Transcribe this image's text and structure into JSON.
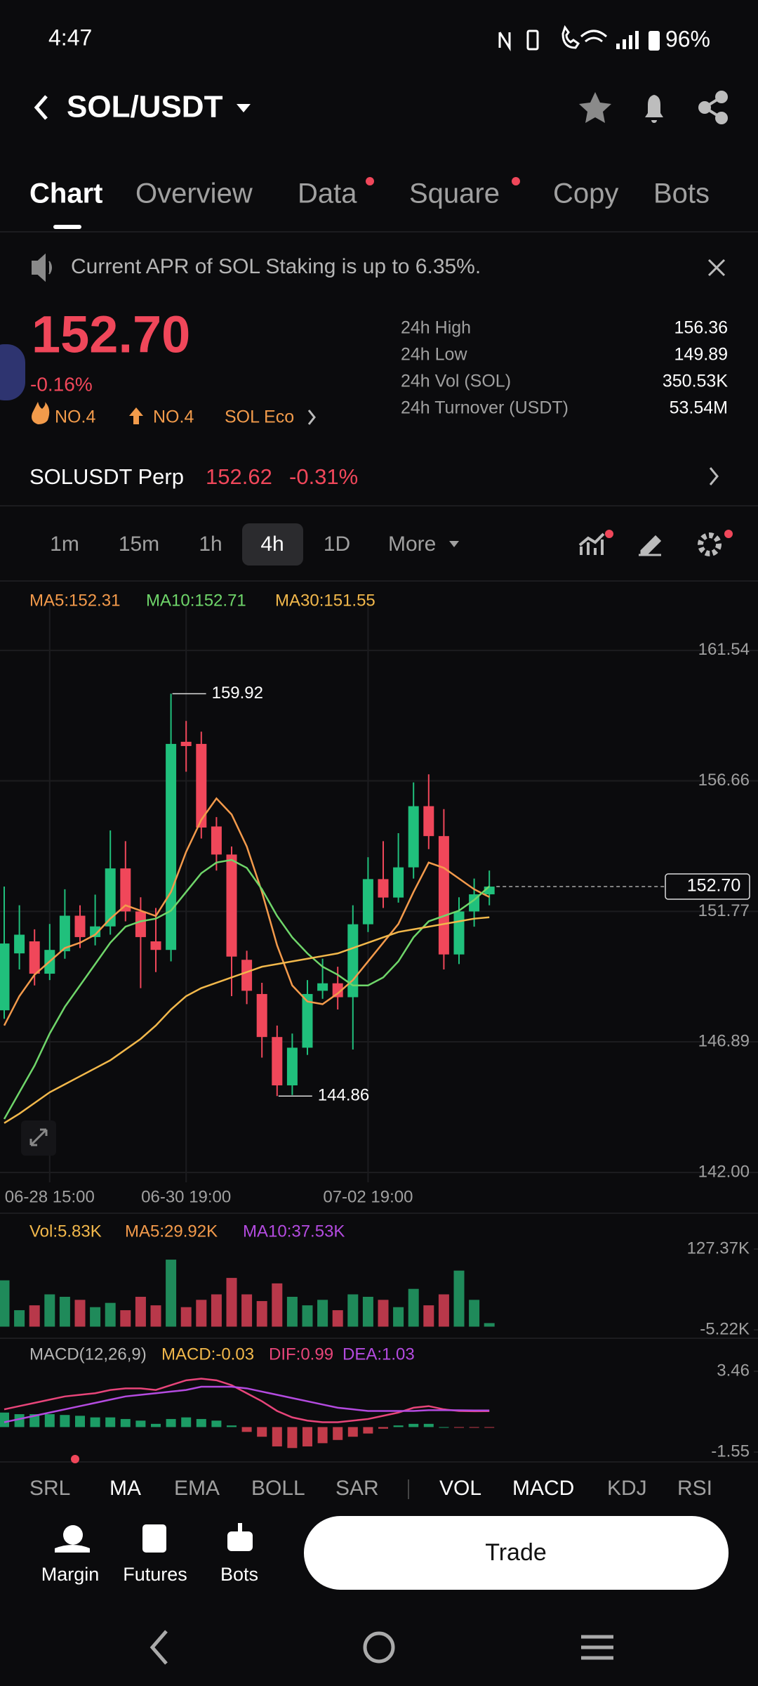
{
  "status_bar": {
    "time": "4:47",
    "battery": "96%"
  },
  "header": {
    "pair": "SOL/USDT"
  },
  "tabs": [
    "Chart",
    "Overview",
    "Data",
    "Square",
    "Copy",
    "Bots"
  ],
  "banner": {
    "text": "Current APR of SOL Staking is up to 6.35%."
  },
  "ticker": {
    "price": "152.70",
    "change": "-0.16%",
    "tags": [
      "NO.4",
      "NO.4",
      "SOL Eco"
    ],
    "stats": [
      {
        "label": "24h High",
        "value": "156.36"
      },
      {
        "label": "24h Low",
        "value": "149.89"
      },
      {
        "label": "24h Vol (SOL)",
        "value": "350.53K"
      },
      {
        "label": "24h Turnover (USDT)",
        "value": "53.54M"
      }
    ]
  },
  "perp": {
    "name": "SOLUSDT Perp",
    "price": "152.62",
    "change": "-0.31%"
  },
  "timeframes": [
    "1m",
    "15m",
    "1h",
    "4h",
    "1D",
    "More"
  ],
  "chart_data": [
    {
      "type": "candlestick",
      "up_color": "#20c07c",
      "down_color": "#f0475a",
      "categories": [
        null,
        null,
        null,
        "06-28 15:00",
        null,
        null,
        null,
        null,
        null,
        null,
        null,
        null,
        "06-30 19:00",
        null,
        null,
        null,
        null,
        null,
        null,
        null,
        null,
        null,
        null,
        null,
        "07-02 19:00",
        null,
        null,
        null,
        null,
        null,
        null,
        null,
        null
      ],
      "open": [
        148.07,
        150.2,
        150.65,
        149.44,
        150.28,
        151.61,
        150.81,
        151.21,
        153.38,
        151.77,
        150.65,
        150.33,
        158.12,
        158.04,
        154.95,
        153.9,
        149.96,
        148.68,
        147.07,
        145.26,
        146.67,
        148.8,
        149.08,
        148.56,
        151.29,
        152.98,
        152.29,
        153.42,
        155.71,
        154.59,
        150.16,
        151.77,
        152.41
      ],
      "high": [
        152.7,
        152.0,
        151.1,
        151.3,
        152.6,
        152.0,
        152.4,
        154.8,
        154.4,
        152.3,
        151.9,
        159.92,
        158.9,
        158.5,
        155.3,
        154.2,
        150.3,
        149.1,
        147.5,
        147.2,
        149.2,
        150.0,
        149.7,
        152.0,
        153.8,
        154.4,
        154.7,
        156.6,
        156.9,
        155.6,
        152.3,
        153.0,
        153.3
      ],
      "low": [
        147.75,
        149.6,
        149.0,
        149.2,
        150.0,
        150.4,
        150.5,
        150.9,
        151.4,
        148.9,
        149.5,
        149.9,
        157.0,
        154.5,
        153.3,
        148.6,
        148.3,
        146.3,
        144.86,
        144.9,
        146.4,
        148.5,
        148.1,
        146.6,
        151.0,
        151.9,
        152.1,
        153.0,
        154.1,
        149.6,
        149.8,
        151.2,
        152.0
      ],
      "close": [
        150.57,
        150.9,
        149.44,
        150.33,
        151.61,
        150.81,
        151.21,
        153.38,
        151.77,
        150.81,
        150.33,
        158.04,
        157.96,
        154.91,
        153.9,
        150.08,
        148.8,
        147.07,
        145.26,
        146.67,
        148.68,
        149.08,
        148.56,
        151.29,
        152.98,
        152.29,
        153.42,
        155.71,
        154.59,
        150.16,
        151.77,
        152.41,
        152.7
      ],
      "series": [
        {
          "name": "MA5:152.31",
          "color": "#f39a4b",
          "values": [
            147.5,
            148.6,
            149.4,
            149.9,
            150.4,
            150.6,
            150.9,
            151.5,
            152.0,
            151.8,
            151.6,
            152.5,
            154.0,
            155.2,
            156.0,
            155.4,
            154.2,
            152.5,
            150.5,
            149.0,
            148.4,
            148.3,
            148.7,
            149.2,
            149.9,
            150.6,
            151.3,
            152.5,
            153.6,
            153.4,
            153.0,
            152.6,
            152.31
          ]
        },
        {
          "name": "MA10:152.71",
          "color": "#6fd66a",
          "values": [
            144.0,
            145.0,
            146.0,
            147.2,
            148.2,
            149.0,
            149.8,
            150.6,
            151.2,
            151.4,
            151.5,
            151.8,
            152.5,
            153.2,
            153.6,
            153.7,
            153.4,
            152.6,
            151.6,
            150.8,
            150.2,
            149.7,
            149.4,
            149.0,
            149.0,
            149.3,
            149.9,
            150.8,
            151.4,
            151.6,
            151.8,
            152.2,
            152.71
          ]
        },
        {
          "name": "MA30:151.55",
          "color": "#f2b84b",
          "values": [
            143.85,
            144.2,
            144.6,
            145.0,
            145.3,
            145.6,
            145.9,
            146.2,
            146.6,
            147.0,
            147.5,
            148.1,
            148.6,
            148.9,
            149.1,
            149.3,
            149.5,
            149.7,
            149.8,
            149.9,
            150.0,
            150.1,
            150.2,
            150.4,
            150.6,
            150.8,
            151.0,
            151.1,
            151.2,
            151.3,
            151.4,
            151.5,
            151.55
          ]
        }
      ],
      "last_price": {
        "value": 152.7,
        "label": "152.70"
      },
      "ylim": [
        142,
        163.35
      ],
      "yticks": [
        {
          "value": 142,
          "label": "142.00"
        },
        146.89,
        151.77,
        156.66,
        161.54
      ],
      "grid": true
    },
    {
      "type": "bar",
      "legend": [
        {
          "text": "Vol:5.83K",
          "color": "#f2b84b"
        },
        {
          "text": "MA5:29.92K",
          "color": "#f39a4b"
        },
        {
          "text": "MA10:37.53K",
          "color": "#b44be0"
        }
      ],
      "up_color": "#1f8a5a",
      "down_color": "#b8384a",
      "values": [
        76,
        27,
        35,
        53,
        49,
        44,
        32,
        39,
        27,
        49,
        35,
        110,
        32,
        44,
        53,
        80,
        53,
        42,
        71,
        49,
        35,
        44,
        27,
        53,
        49,
        44,
        32,
        62,
        35,
        53,
        92,
        44,
        5.83
      ],
      "ylim": [
        -5.22,
        127.37
      ],
      "yticks": [
        {
          "value": -5.22,
          "label": "-5.22K"
        },
        {
          "value": 127.37,
          "label": "127.37K"
        }
      ]
    },
    {
      "type": "macd",
      "legend": [
        {
          "text": "MACD(12,26,9)",
          "color": "#b5b5b5"
        },
        {
          "text": "MACD:-0.03",
          "color": "#f2b84b"
        },
        {
          "text": "DIF:0.99",
          "color": "#e8457a"
        },
        {
          "text": "DEA:1.03",
          "color": "#b44be0"
        }
      ],
      "up_color": "#20c07c",
      "down_color": "#f0475a",
      "values": [
        0.9,
        0.8,
        0.8,
        0.8,
        0.75,
        0.7,
        0.6,
        0.6,
        0.5,
        0.4,
        0.2,
        0.5,
        0.6,
        0.5,
        0.4,
        0.1,
        -0.3,
        -0.6,
        -1.2,
        -1.3,
        -1.2,
        -1.0,
        -0.8,
        -0.6,
        -0.4,
        -0.1,
        0.1,
        0.2,
        0.2,
        0.0,
        -0.03,
        -0.03,
        -0.03
      ],
      "series": [
        {
          "name": "DIF",
          "color": "#e8457a",
          "values": [
            1.1,
            1.3,
            1.5,
            1.7,
            1.9,
            2.0,
            2.1,
            2.3,
            2.4,
            2.4,
            2.3,
            2.6,
            2.9,
            3.0,
            2.9,
            2.6,
            2.1,
            1.6,
            1.0,
            0.6,
            0.4,
            0.3,
            0.3,
            0.4,
            0.5,
            0.7,
            0.9,
            1.2,
            1.3,
            1.1,
            1.0,
            0.98,
            0.99
          ]
        },
        {
          "name": "DEA",
          "color": "#b44be0",
          "values": [
            0.3,
            0.5,
            0.7,
            0.9,
            1.1,
            1.3,
            1.5,
            1.7,
            1.9,
            2.0,
            2.1,
            2.2,
            2.3,
            2.5,
            2.5,
            2.5,
            2.4,
            2.2,
            2.0,
            1.8,
            1.6,
            1.4,
            1.2,
            1.1,
            1.0,
            1.0,
            1.0,
            1.0,
            1.05,
            1.05,
            1.04,
            1.03,
            1.03
          ]
        }
      ],
      "ylim": [
        -1.55,
        3.46
      ],
      "yticks": [
        -1.55,
        3.46
      ]
    }
  ],
  "indicators": [
    "SRL",
    "MA",
    "EMA",
    "BOLL",
    "SAR",
    "VOL",
    "MACD",
    "KDJ",
    "RSI"
  ],
  "bottom_bar": {
    "items": [
      "Margin",
      "Futures",
      "Bots"
    ],
    "button": "Trade"
  }
}
